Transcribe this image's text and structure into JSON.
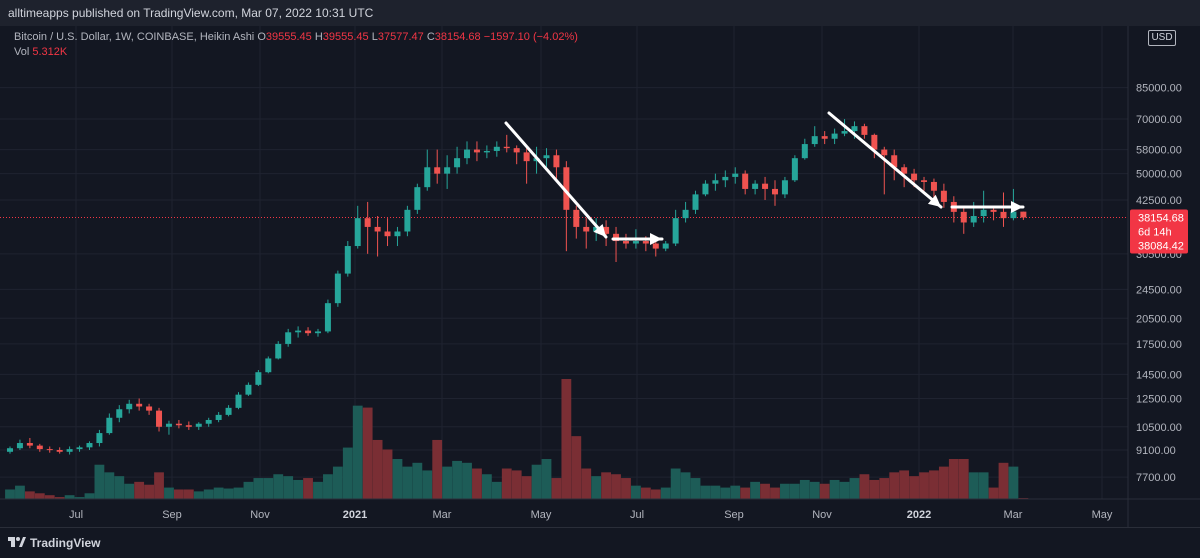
{
  "header": {
    "publisher": "alltimeapps published on TradingView.com, Mar 07, 2022 10:31 UTC"
  },
  "legend": {
    "symbol": "Bitcoin / U.S. Dollar, 1W, COINBASE, Heikin Ashi",
    "o_label": "O",
    "o": "39555.45",
    "h_label": "H",
    "h": "39555.45",
    "l_label": "L",
    "l": "37577.47",
    "c_label": "C",
    "c": "38154.68",
    "chg": "−1597.10 (−4.02%)",
    "vol_label": "Vol",
    "vol": "5.312K"
  },
  "currency": "USD",
  "footer": {
    "brand": "TradingView"
  },
  "colors": {
    "up": "#26a69a",
    "down": "#ef5350",
    "vol_up": "#1d5c57",
    "vol_down": "#7a2e34",
    "bg": "#131722",
    "grid": "#1f2330",
    "text": "#b2b5be",
    "price_line": "#f23645"
  },
  "chart_data": {
    "type": "candlestick",
    "scale": "log",
    "title": "Bitcoin / U.S. Dollar, 1W, COINBASE, Heikin Ashi",
    "y_axis_ticks": [
      7700,
      9100,
      10500,
      12500,
      14500,
      17500,
      20500,
      24500,
      30500,
      42500,
      50000,
      58000,
      70000,
      85000
    ],
    "y_tick_labels": [
      "7700.00",
      "9100.00",
      "10500.00",
      "12500.00",
      "14500.00",
      "17500.00",
      "20500.00",
      "24500.00",
      "30500.00",
      "42500.00",
      "50000.00",
      "58000.00",
      "70000.00",
      "85000.00"
    ],
    "x_tick_labels": [
      "Jul",
      "Sep",
      "Nov",
      "2021",
      "Mar",
      "May",
      "Jul",
      "Sep",
      "Nov",
      "2022",
      "Mar",
      "May"
    ],
    "last_price": "38154.68",
    "countdown": "6d 14h",
    "second_price": "38084.42",
    "candles": [
      [
        9000,
        9300,
        8900,
        9200
      ],
      [
        9200,
        9700,
        9100,
        9500
      ],
      [
        9500,
        9800,
        9200,
        9350
      ],
      [
        9350,
        9450,
        9000,
        9150
      ],
      [
        9150,
        9300,
        8950,
        9100
      ],
      [
        9100,
        9250,
        8900,
        9000
      ],
      [
        9000,
        9300,
        8850,
        9150
      ],
      [
        9150,
        9350,
        9000,
        9250
      ],
      [
        9250,
        9600,
        9100,
        9500
      ],
      [
        9500,
        10300,
        9300,
        10100
      ],
      [
        10100,
        11400,
        10000,
        11100
      ],
      [
        11100,
        12000,
        10800,
        11700
      ],
      [
        11700,
        12400,
        11400,
        12100
      ],
      [
        12100,
        12500,
        11600,
        11900
      ],
      [
        11900,
        12100,
        11300,
        11600
      ],
      [
        11600,
        11800,
        10200,
        10500
      ],
      [
        10500,
        10900,
        10000,
        10700
      ],
      [
        10700,
        10950,
        10400,
        10600
      ],
      [
        10600,
        10850,
        10300,
        10500
      ],
      [
        10500,
        10800,
        10300,
        10700
      ],
      [
        10700,
        11100,
        10500,
        10950
      ],
      [
        10950,
        11500,
        10800,
        11300
      ],
      [
        11300,
        12000,
        11200,
        11800
      ],
      [
        11800,
        13000,
        11700,
        12800
      ],
      [
        12800,
        13800,
        12700,
        13600
      ],
      [
        13600,
        14900,
        13500,
        14700
      ],
      [
        14700,
        16200,
        14600,
        16000
      ],
      [
        16000,
        17800,
        15900,
        17500
      ],
      [
        17500,
        19200,
        17200,
        18800
      ],
      [
        18800,
        19500,
        18200,
        19000
      ],
      [
        19000,
        19400,
        18400,
        18700
      ],
      [
        18700,
        19200,
        18300,
        18900
      ],
      [
        18900,
        23000,
        18700,
        22500
      ],
      [
        22500,
        27500,
        22000,
        27000
      ],
      [
        27000,
        33000,
        26500,
        32000
      ],
      [
        32000,
        41000,
        31500,
        38000
      ],
      [
        38000,
        42000,
        30500,
        36000
      ],
      [
        36000,
        38500,
        30000,
        35000
      ],
      [
        35000,
        38000,
        32000,
        34000
      ],
      [
        34000,
        36000,
        32000,
        35000
      ],
      [
        35000,
        41000,
        34000,
        40000
      ],
      [
        40000,
        47000,
        39000,
        46000
      ],
      [
        46000,
        58000,
        45000,
        52000
      ],
      [
        52000,
        58000,
        47000,
        50000
      ],
      [
        50000,
        56000,
        45500,
        52000
      ],
      [
        52000,
        59000,
        50000,
        55000
      ],
      [
        55000,
        61000,
        53000,
        58000
      ],
      [
        58000,
        61000,
        54000,
        57000
      ],
      [
        57000,
        59500,
        55000,
        57500
      ],
      [
        57500,
        61000,
        55500,
        59000
      ],
      [
        59000,
        63500,
        57000,
        58500
      ],
      [
        58500,
        59500,
        53000,
        57000
      ],
      [
        57000,
        58500,
        47000,
        54000
      ],
      [
        54000,
        59000,
        50000,
        55000
      ],
      [
        55000,
        58500,
        52000,
        56000
      ],
      [
        56000,
        58000,
        48000,
        52000
      ],
      [
        52000,
        54000,
        31000,
        40000
      ],
      [
        40000,
        41000,
        33500,
        36000
      ],
      [
        36000,
        38000,
        31500,
        35000
      ],
      [
        35000,
        38000,
        33000,
        36000
      ],
      [
        36000,
        37500,
        32000,
        34500
      ],
      [
        34500,
        36000,
        29000,
        33000
      ],
      [
        33000,
        34500,
        31500,
        32500
      ],
      [
        32500,
        35500,
        31500,
        33000
      ],
      [
        33000,
        34000,
        31000,
        32500
      ],
      [
        32500,
        33500,
        30000,
        31500
      ],
      [
        31500,
        33000,
        31000,
        32500
      ],
      [
        32500,
        40000,
        32000,
        38000
      ],
      [
        38000,
        42000,
        37000,
        40000
      ],
      [
        40000,
        45000,
        39000,
        44000
      ],
      [
        44000,
        48000,
        43500,
        47000
      ],
      [
        47000,
        50000,
        45000,
        48000
      ],
      [
        48000,
        51000,
        46000,
        49000
      ],
      [
        49000,
        52000,
        47000,
        50000
      ],
      [
        50000,
        51000,
        44000,
        45500
      ],
      [
        45500,
        48000,
        44000,
        47000
      ],
      [
        47000,
        49000,
        42500,
        45500
      ],
      [
        45500,
        48000,
        41000,
        44000
      ],
      [
        44000,
        49000,
        43000,
        48000
      ],
      [
        48000,
        56000,
        47500,
        55000
      ],
      [
        55000,
        62000,
        54500,
        60000
      ],
      [
        60000,
        67000,
        59000,
        63000
      ],
      [
        63000,
        65000,
        60000,
        62000
      ],
      [
        62000,
        66000,
        60000,
        64000
      ],
      [
        64000,
        70000,
        63000,
        65000
      ],
      [
        65000,
        69000,
        62000,
        67000
      ],
      [
        67000,
        68000,
        62000,
        63500
      ],
      [
        63500,
        64000,
        55000,
        58000
      ],
      [
        58000,
        59000,
        44000,
        56000
      ],
      [
        56000,
        58000,
        48000,
        52000
      ],
      [
        52000,
        53000,
        46000,
        50000
      ],
      [
        50000,
        51500,
        46000,
        48000
      ],
      [
        48000,
        49000,
        45000,
        47500
      ],
      [
        47500,
        48500,
        43000,
        45000
      ],
      [
        45000,
        47000,
        40500,
        42000
      ],
      [
        42000,
        43500,
        37000,
        39500
      ],
      [
        39500,
        40500,
        34500,
        37000
      ],
      [
        37000,
        42000,
        36000,
        38500
      ],
      [
        38500,
        45000,
        37000,
        40000
      ],
      [
        40000,
        41000,
        37500,
        39500
      ],
      [
        39500,
        44500,
        36000,
        38000
      ],
      [
        38000,
        45500,
        37500,
        39555
      ],
      [
        39555,
        39555,
        37577,
        38154
      ]
    ],
    "volume": [
      7700,
      7900,
      7600,
      7500,
      7400,
      7300,
      7400,
      7300,
      7500,
      9000,
      8600,
      8400,
      8000,
      8100,
      7950,
      8600,
      7800,
      7700,
      7700,
      7600,
      7700,
      7800,
      7750,
      7800,
      8100,
      8300,
      8300,
      8500,
      8400,
      8200,
      8300,
      8100,
      8500,
      8900,
      9900,
      12100,
      12000,
      10300,
      9800,
      9300,
      8900,
      9100,
      8700,
      10300,
      8900,
      9200,
      9100,
      8800,
      8500,
      8100,
      8800,
      8700,
      8400,
      9000,
      9300,
      8300,
      13500,
      10500,
      8800,
      8400,
      8600,
      8500,
      8300,
      7900,
      7800,
      7700,
      7800,
      8800,
      8600,
      8300,
      7900,
      7900,
      7800,
      7900,
      7800,
      8100,
      8000,
      7800,
      8000,
      8000,
      8200,
      8100,
      8000,
      8200,
      8100,
      8300,
      8500,
      8200,
      8300,
      8600,
      8700,
      8400,
      8600,
      8700,
      8900,
      9300,
      9300,
      8600,
      8600,
      7800,
      9100,
      8900,
      7250
    ]
  },
  "annotations": {
    "arrows": "drawn"
  }
}
